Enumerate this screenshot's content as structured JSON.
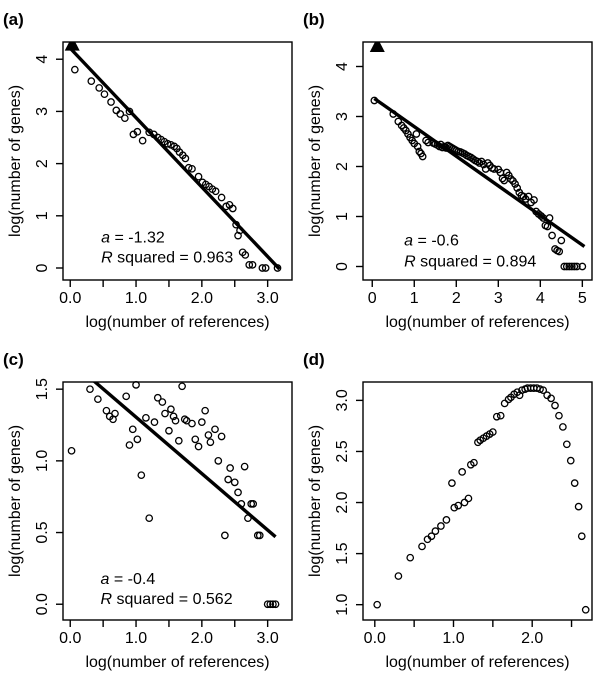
{
  "style": {
    "background": "#ffffff",
    "ink": "#000000"
  },
  "chart_data": [
    {
      "id": "a",
      "type": "scatter",
      "panel_label": "(a)",
      "xlabel": "log(number of references)",
      "ylabel": "log(number of genes)",
      "xlim": [
        -0.11,
        3.37
      ],
      "ylim": [
        -0.23,
        4.33
      ],
      "xticks": [
        {
          "v": 0.0,
          "label": "0.0"
        },
        {
          "v": 0.5,
          "label": ""
        },
        {
          "v": 1.0,
          "label": "1.0"
        },
        {
          "v": 1.5,
          "label": ""
        },
        {
          "v": 2.0,
          "label": "2.0"
        },
        {
          "v": 2.5,
          "label": ""
        },
        {
          "v": 3.0,
          "label": "3.0"
        }
      ],
      "yticks": [
        {
          "v": 0,
          "label": "0"
        },
        {
          "v": 1,
          "label": "1"
        },
        {
          "v": 2,
          "label": "2"
        },
        {
          "v": 3,
          "label": "3"
        },
        {
          "v": 4,
          "label": "4"
        }
      ],
      "fit_line": {
        "x1": 0.0,
        "y1": 4.21,
        "x2": 3.18,
        "y2": -0.02
      },
      "triangle_marker": {
        "x": 0.03,
        "y": 4.27
      },
      "annotations": [
        {
          "italic": "a",
          "text": " = -1.32"
        },
        {
          "italic": "R",
          "text": " squared = 0.963"
        }
      ],
      "annotation_pos": {
        "x": 0.47,
        "y1": 0.49,
        "y2": 0.105
      },
      "points": [
        [
          0.07,
          3.8
        ],
        [
          0.32,
          3.58
        ],
        [
          0.44,
          3.45
        ],
        [
          0.52,
          3.33
        ],
        [
          0.62,
          3.18
        ],
        [
          0.7,
          3.02
        ],
        [
          0.76,
          2.95
        ],
        [
          0.83,
          2.87
        ],
        [
          0.9,
          3.0
        ],
        [
          0.96,
          2.56
        ],
        [
          1.02,
          2.61
        ],
        [
          1.1,
          2.44
        ],
        [
          1.2,
          2.6
        ],
        [
          1.27,
          2.56
        ],
        [
          1.33,
          2.5
        ],
        [
          1.38,
          2.46
        ],
        [
          1.43,
          2.42
        ],
        [
          1.48,
          2.38
        ],
        [
          1.53,
          2.36
        ],
        [
          1.58,
          2.33
        ],
        [
          1.62,
          2.29
        ],
        [
          1.66,
          2.22
        ],
        [
          1.71,
          2.16
        ],
        [
          1.75,
          2.1
        ],
        [
          1.8,
          1.92
        ],
        [
          1.85,
          1.9
        ],
        [
          1.95,
          1.75
        ],
        [
          2.01,
          1.64
        ],
        [
          2.06,
          1.6
        ],
        [
          2.11,
          1.56
        ],
        [
          2.16,
          1.51
        ],
        [
          2.21,
          1.47
        ],
        [
          2.3,
          1.35
        ],
        [
          2.37,
          1.18
        ],
        [
          2.42,
          1.21
        ],
        [
          2.47,
          1.14
        ],
        [
          2.52,
          0.83
        ],
        [
          2.55,
          0.62
        ],
        [
          2.58,
          0.72
        ],
        [
          2.62,
          0.3
        ],
        [
          2.66,
          0.25
        ],
        [
          2.72,
          0.06
        ],
        [
          2.77,
          0.06
        ],
        [
          2.92,
          0.0
        ],
        [
          2.97,
          0.0
        ],
        [
          3.15,
          0.0
        ]
      ]
    },
    {
      "id": "b",
      "type": "scatter",
      "panel_label": "(b)",
      "xlabel": "log(number of references)",
      "ylabel": "log(number of genes)",
      "xlim": [
        -0.22,
        5.23
      ],
      "ylim": [
        -0.27,
        4.49
      ],
      "xticks": [
        {
          "v": 0,
          "label": "0"
        },
        {
          "v": 1,
          "label": "1"
        },
        {
          "v": 2,
          "label": "2"
        },
        {
          "v": 3,
          "label": "3"
        },
        {
          "v": 4,
          "label": "4"
        },
        {
          "v": 5,
          "label": "5"
        }
      ],
      "yticks": [
        {
          "v": 0,
          "label": "0"
        },
        {
          "v": 1,
          "label": "1"
        },
        {
          "v": 2,
          "label": "2"
        },
        {
          "v": 3,
          "label": "3"
        },
        {
          "v": 4,
          "label": "4"
        }
      ],
      "fit_line": {
        "x1": 0.05,
        "y1": 3.36,
        "x2": 5.05,
        "y2": 0.4
      },
      "triangle_marker": {
        "x": 0.12,
        "y": 4.4
      },
      "annotations": [
        {
          "italic": "a",
          "text": " = -0.6"
        },
        {
          "italic": "R",
          "text": " squared = 0.894"
        }
      ],
      "annotation_pos": {
        "x": 0.76,
        "y1": 0.42,
        "y2": 0.0
      },
      "points": [
        [
          0.05,
          3.32
        ],
        [
          0.5,
          3.05
        ],
        [
          0.62,
          2.9
        ],
        [
          0.7,
          2.82
        ],
        [
          0.75,
          2.77
        ],
        [
          0.8,
          2.72
        ],
        [
          0.85,
          2.65
        ],
        [
          0.9,
          2.58
        ],
        [
          0.95,
          2.52
        ],
        [
          1.0,
          2.46
        ],
        [
          1.05,
          2.65
        ],
        [
          1.08,
          2.4
        ],
        [
          1.12,
          2.3
        ],
        [
          1.16,
          2.26
        ],
        [
          1.2,
          2.2
        ],
        [
          1.28,
          2.52
        ],
        [
          1.33,
          2.48
        ],
        [
          1.45,
          2.47
        ],
        [
          1.5,
          2.45
        ],
        [
          1.55,
          2.43
        ],
        [
          1.6,
          2.4
        ],
        [
          1.63,
          2.44
        ],
        [
          1.67,
          2.38
        ],
        [
          1.72,
          2.4
        ],
        [
          1.76,
          2.37
        ],
        [
          1.8,
          2.42
        ],
        [
          1.84,
          2.4
        ],
        [
          1.88,
          2.38
        ],
        [
          1.92,
          2.36
        ],
        [
          1.96,
          2.34
        ],
        [
          2.0,
          2.32
        ],
        [
          2.05,
          2.3
        ],
        [
          2.1,
          2.29
        ],
        [
          2.15,
          2.27
        ],
        [
          2.2,
          2.25
        ],
        [
          2.25,
          2.22
        ],
        [
          2.3,
          2.2
        ],
        [
          2.35,
          2.18
        ],
        [
          2.4,
          2.15
        ],
        [
          2.45,
          2.12
        ],
        [
          2.5,
          2.1
        ],
        [
          2.55,
          2.07
        ],
        [
          2.6,
          2.1
        ],
        [
          2.65,
          2.04
        ],
        [
          2.7,
          1.95
        ],
        [
          2.75,
          2.07
        ],
        [
          2.8,
          2.02
        ],
        [
          2.85,
          1.97
        ],
        [
          2.9,
          1.95
        ],
        [
          3.0,
          1.94
        ],
        [
          3.05,
          1.88
        ],
        [
          3.1,
          1.76
        ],
        [
          3.14,
          1.72
        ],
        [
          3.2,
          1.88
        ],
        [
          3.25,
          1.82
        ],
        [
          3.3,
          1.75
        ],
        [
          3.35,
          1.71
        ],
        [
          3.4,
          1.65
        ],
        [
          3.45,
          1.57
        ],
        [
          3.5,
          1.48
        ],
        [
          3.55,
          1.42
        ],
        [
          3.6,
          1.4
        ],
        [
          3.65,
          1.35
        ],
        [
          3.72,
          1.4
        ],
        [
          3.78,
          1.28
        ],
        [
          3.85,
          1.33
        ],
        [
          3.9,
          1.1
        ],
        [
          3.96,
          1.05
        ],
        [
          4.02,
          1.01
        ],
        [
          4.07,
          0.97
        ],
        [
          4.12,
          0.82
        ],
        [
          4.17,
          0.8
        ],
        [
          4.22,
          0.97
        ],
        [
          4.28,
          0.62
        ],
        [
          4.35,
          0.35
        ],
        [
          4.4,
          0.32
        ],
        [
          4.45,
          0.3
        ],
        [
          4.5,
          0.52
        ],
        [
          4.57,
          0.0
        ],
        [
          4.63,
          0.0
        ],
        [
          4.69,
          0.0
        ],
        [
          4.75,
          0.0
        ],
        [
          4.81,
          0.0
        ],
        [
          4.87,
          0.0
        ],
        [
          5.0,
          0.0
        ]
      ]
    },
    {
      "id": "c",
      "type": "scatter",
      "panel_label": "(c)",
      "xlabel": "log(number of references)",
      "ylabel": "log(number of genes)",
      "xlim": [
        -0.11,
        3.37
      ],
      "ylim": [
        -0.11,
        1.55
      ],
      "xticks": [
        {
          "v": 0.0,
          "label": "0.0"
        },
        {
          "v": 0.5,
          "label": ""
        },
        {
          "v": 1.0,
          "label": "1.0"
        },
        {
          "v": 1.5,
          "label": ""
        },
        {
          "v": 2.0,
          "label": "2.0"
        },
        {
          "v": 2.5,
          "label": ""
        },
        {
          "v": 3.0,
          "label": "3.0"
        }
      ],
      "yticks": [
        {
          "v": 0.0,
          "label": "0.0"
        },
        {
          "v": 0.5,
          "label": "0.5"
        },
        {
          "v": 1.0,
          "label": "1.0"
        },
        {
          "v": 1.5,
          "label": "1.5"
        }
      ],
      "fit_line": {
        "x1": 0.2,
        "y1": 1.62,
        "x2": 3.12,
        "y2": 0.47
      },
      "triangle_marker": null,
      "annotations": [
        {
          "italic": "a",
          "text": " = -0.4"
        },
        {
          "italic": "R",
          "text": " squared = 0.562"
        }
      ],
      "annotation_pos": {
        "x": 0.46,
        "y1": 0.14,
        "y2": 0.002
      },
      "points": [
        [
          0.02,
          1.07
        ],
        [
          0.3,
          1.5
        ],
        [
          0.42,
          1.43
        ],
        [
          0.55,
          1.35
        ],
        [
          0.6,
          1.31
        ],
        [
          0.65,
          1.29
        ],
        [
          0.68,
          1.33
        ],
        [
          0.85,
          1.45
        ],
        [
          0.9,
          1.11
        ],
        [
          0.95,
          1.22
        ],
        [
          1.0,
          1.53
        ],
        [
          1.02,
          1.15
        ],
        [
          1.08,
          0.9
        ],
        [
          1.15,
          1.3
        ],
        [
          1.2,
          0.6
        ],
        [
          1.28,
          1.27
        ],
        [
          1.33,
          1.44
        ],
        [
          1.4,
          1.41
        ],
        [
          1.44,
          1.33
        ],
        [
          1.5,
          1.21
        ],
        [
          1.53,
          1.36
        ],
        [
          1.57,
          1.31
        ],
        [
          1.6,
          1.28
        ],
        [
          1.65,
          1.14
        ],
        [
          1.7,
          1.52
        ],
        [
          1.74,
          1.29
        ],
        [
          1.77,
          1.28
        ],
        [
          1.85,
          1.26
        ],
        [
          1.9,
          1.15
        ],
        [
          1.95,
          1.1
        ],
        [
          2.0,
          1.27
        ],
        [
          2.05,
          1.35
        ],
        [
          2.1,
          1.18
        ],
        [
          2.13,
          1.13
        ],
        [
          2.2,
          1.22
        ],
        [
          2.25,
          1.0
        ],
        [
          2.3,
          1.17
        ],
        [
          2.35,
          0.48
        ],
        [
          2.4,
          0.87
        ],
        [
          2.43,
          0.95
        ],
        [
          2.5,
          0.85
        ],
        [
          2.55,
          0.78
        ],
        [
          2.6,
          0.7
        ],
        [
          2.65,
          0.96
        ],
        [
          2.7,
          0.6
        ],
        [
          2.75,
          0.7
        ],
        [
          2.78,
          0.7
        ],
        [
          2.85,
          0.48
        ],
        [
          2.88,
          0.48
        ],
        [
          3.0,
          0.0
        ],
        [
          3.04,
          0.0
        ],
        [
          3.08,
          0.0
        ],
        [
          3.12,
          0.0
        ]
      ]
    },
    {
      "id": "d",
      "type": "scatter",
      "panel_label": "(d)",
      "xlabel": "log(number of references)",
      "ylabel": "log(number of genes)",
      "xlim": [
        -0.15,
        2.76
      ],
      "ylim": [
        0.85,
        3.18
      ],
      "xticks": [
        {
          "v": 0.0,
          "label": "0.0"
        },
        {
          "v": 0.5,
          "label": ""
        },
        {
          "v": 1.0,
          "label": "1.0"
        },
        {
          "v": 1.5,
          "label": ""
        },
        {
          "v": 2.0,
          "label": "2.0"
        },
        {
          "v": 2.5,
          "label": ""
        }
      ],
      "yticks": [
        {
          "v": 1.0,
          "label": "1.0"
        },
        {
          "v": 1.5,
          "label": "1.5"
        },
        {
          "v": 2.0,
          "label": "2.0"
        },
        {
          "v": 2.5,
          "label": "2.5"
        },
        {
          "v": 3.0,
          "label": "3.0"
        }
      ],
      "fit_line": null,
      "triangle_marker": null,
      "annotations": [],
      "annotation_pos": null,
      "points": [
        [
          0.03,
          1.0
        ],
        [
          0.3,
          1.28
        ],
        [
          0.45,
          1.46
        ],
        [
          0.6,
          1.57
        ],
        [
          0.67,
          1.64
        ],
        [
          0.72,
          1.67
        ],
        [
          0.77,
          1.72
        ],
        [
          0.84,
          1.77
        ],
        [
          0.91,
          1.83
        ],
        [
          0.98,
          2.19
        ],
        [
          1.01,
          1.95
        ],
        [
          1.06,
          1.97
        ],
        [
          1.11,
          2.3
        ],
        [
          1.14,
          2.0
        ],
        [
          1.19,
          2.04
        ],
        [
          1.22,
          2.37
        ],
        [
          1.26,
          2.39
        ],
        [
          1.31,
          2.59
        ],
        [
          1.34,
          2.61
        ],
        [
          1.38,
          2.63
        ],
        [
          1.42,
          2.65
        ],
        [
          1.46,
          2.67
        ],
        [
          1.5,
          2.69
        ],
        [
          1.55,
          2.84
        ],
        [
          1.6,
          2.85
        ],
        [
          1.65,
          2.97
        ],
        [
          1.7,
          3.01
        ],
        [
          1.73,
          3.03
        ],
        [
          1.77,
          3.06
        ],
        [
          1.81,
          3.08
        ],
        [
          1.84,
          3.05
        ],
        [
          1.87,
          3.1
        ],
        [
          1.91,
          3.11
        ],
        [
          1.94,
          3.12
        ],
        [
          1.98,
          3.12
        ],
        [
          2.02,
          3.12
        ],
        [
          2.06,
          3.12
        ],
        [
          2.1,
          3.11
        ],
        [
          2.14,
          3.1
        ],
        [
          2.19,
          3.05
        ],
        [
          2.24,
          3.02
        ],
        [
          2.29,
          2.95
        ],
        [
          2.34,
          2.85
        ],
        [
          2.39,
          2.74
        ],
        [
          2.44,
          2.57
        ],
        [
          2.49,
          2.41
        ],
        [
          2.54,
          2.19
        ],
        [
          2.59,
          1.96
        ],
        [
          2.63,
          1.67
        ],
        [
          2.68,
          0.95
        ]
      ]
    }
  ]
}
